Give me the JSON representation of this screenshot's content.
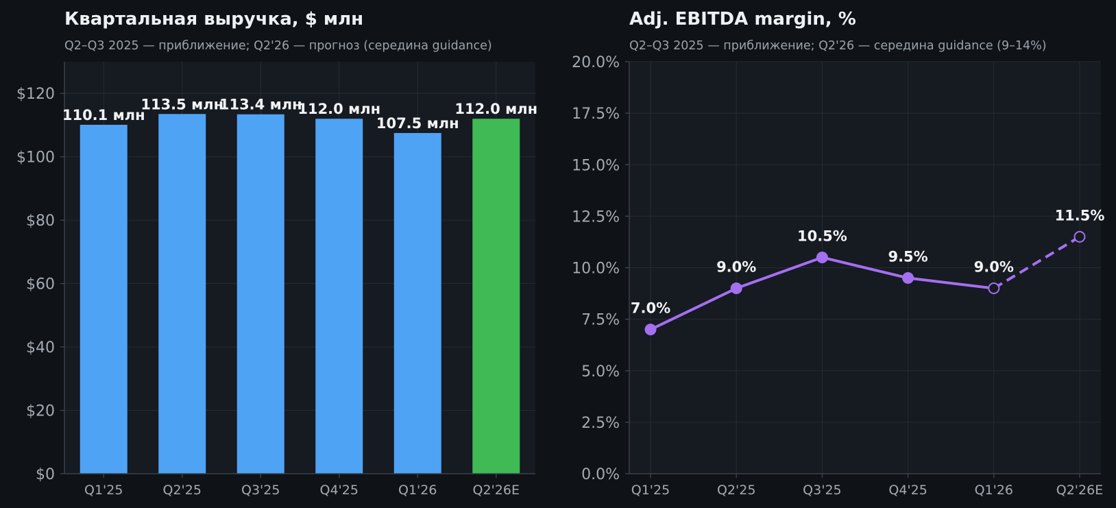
{
  "colors": {
    "background": "#0f1317",
    "plot_background": "#161a21",
    "bar": "#4fa3f5",
    "bar_forecast": "#3fba55",
    "line": "#a46ff0"
  },
  "chart_data": [
    {
      "type": "bar",
      "title": "Квартальная выручка, $ млн",
      "subtitle": "Q2–Q3 2025 — приближение; Q2'26 — прогноз (середина guidance)",
      "categories": [
        "Q1'25",
        "Q2'25",
        "Q3'25",
        "Q4'25",
        "Q1'26",
        "Q2'26E"
      ],
      "values": [
        110.1,
        113.5,
        113.4,
        112.0,
        107.5,
        112.0
      ],
      "data_labels": [
        "110.1 млн",
        "113.5 млн",
        "113.4 млн",
        "112.0 млн",
        "107.5 млн",
        "112.0 млн"
      ],
      "forecast": [
        false,
        false,
        false,
        false,
        false,
        true
      ],
      "ylim": [
        0,
        130
      ],
      "yticks": [
        0,
        20,
        40,
        60,
        80,
        100,
        120
      ],
      "ytick_labels": [
        "$0",
        "$20",
        "$40",
        "$60",
        "$80",
        "$100",
        "$120"
      ],
      "grid": true
    },
    {
      "type": "line",
      "title": "Adj. EBITDA margin, %",
      "subtitle": "Q2–Q3 2025 — приближение; Q2'26 — середина guidance (9–14%)",
      "categories": [
        "Q1'25",
        "Q2'25",
        "Q3'25",
        "Q4'25",
        "Q1'26",
        "Q2'26E"
      ],
      "values": [
        7.0,
        9.0,
        10.5,
        9.5,
        9.0,
        11.5
      ],
      "data_labels": [
        "7.0%",
        "9.0%",
        "10.5%",
        "9.5%",
        "9.0%",
        "11.5%"
      ],
      "forecast": [
        false,
        false,
        false,
        false,
        false,
        true
      ],
      "ylim": [
        0,
        20
      ],
      "yticks": [
        0,
        2.5,
        5,
        7.5,
        10,
        12.5,
        15,
        17.5,
        20
      ],
      "ytick_labels": [
        "0.0%",
        "2.5%",
        "5.0%",
        "7.5%",
        "10.0%",
        "12.5%",
        "15.0%",
        "17.5%",
        "20.0%"
      ],
      "grid": true
    }
  ]
}
